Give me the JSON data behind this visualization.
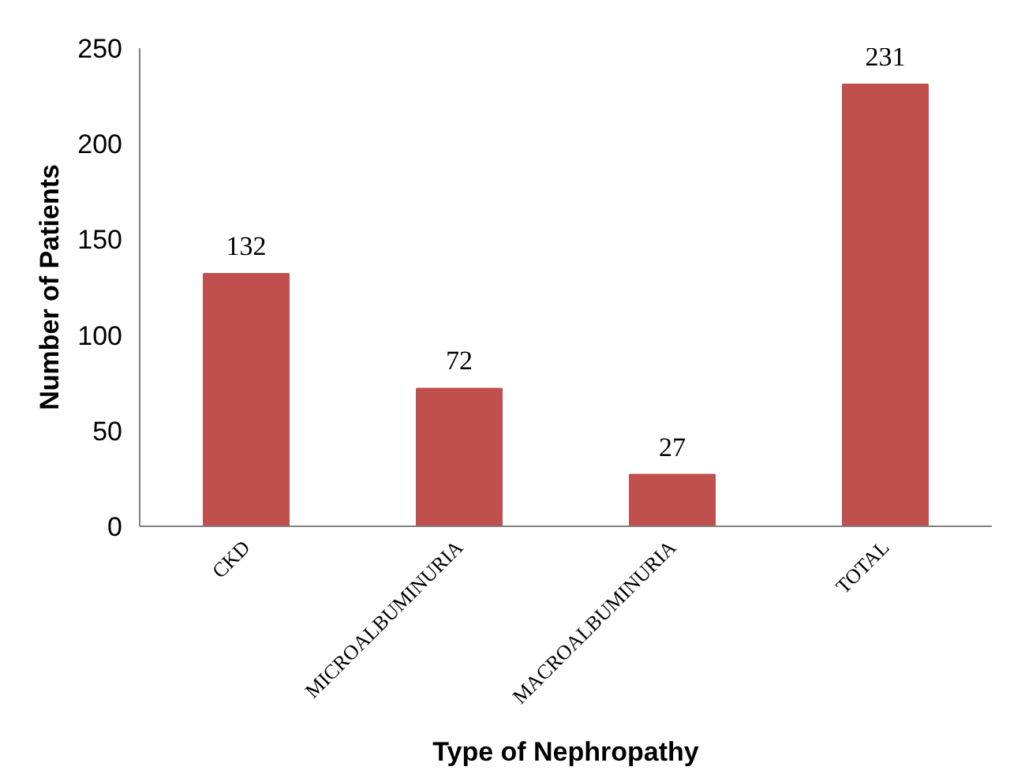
{
  "chart_data": {
    "type": "bar",
    "xlabel": "Type of Nephropathy",
    "ylabel": "Number of Patients",
    "categories": [
      "CKD",
      "MICROALBUMINURIA",
      "MACROALBUMINURIA",
      "TOTAL"
    ],
    "values": [
      132,
      72,
      27,
      231
    ],
    "color": "#c0504d",
    "ylim": [
      0,
      250
    ],
    "yticks": [
      0,
      50,
      100,
      150,
      200,
      250
    ],
    "grid": false,
    "data_labels": true
  }
}
